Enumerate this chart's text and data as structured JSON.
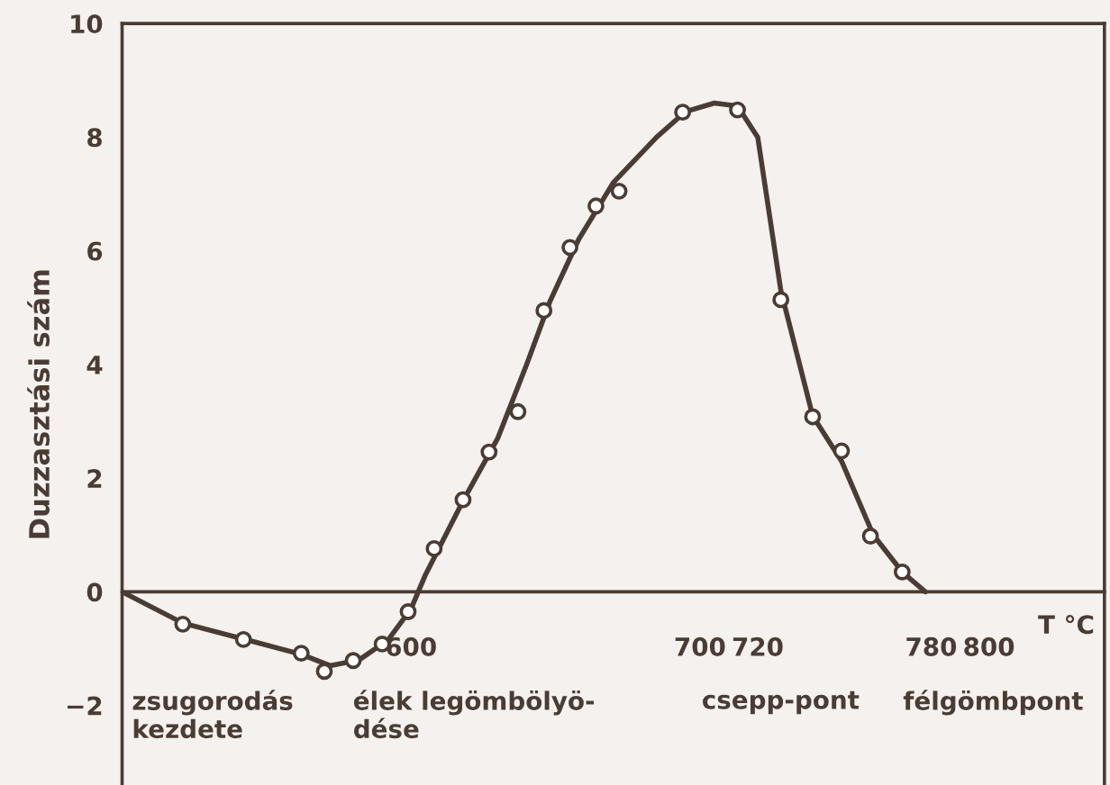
{
  "chart_data": {
    "type": "scatter",
    "ylabel": "Duzzasztási szám",
    "xlabel": "T °C",
    "xlim": [
      500,
      840
    ],
    "xticks": [
      600,
      700,
      720,
      780,
      800
    ],
    "ylim": [
      -3.4,
      10
    ],
    "yticks": [
      -2,
      0,
      2,
      4,
      6,
      8,
      10
    ],
    "grid": false,
    "series": [
      {
        "color": "#4a3c34",
        "marker": "circle",
        "x": [
          521,
          542,
          562,
          570,
          580,
          590,
          599,
          608,
          618,
          627,
          637,
          646,
          655,
          664,
          672,
          694,
          713,
          728,
          739,
          749,
          759,
          770
        ],
        "values": [
          -0.57,
          -0.84,
          -1.08,
          -1.4,
          -1.21,
          -0.92,
          -0.35,
          0.76,
          1.62,
          2.46,
          3.17,
          4.95,
          6.06,
          6.79,
          7.05,
          8.44,
          8.48,
          5.14,
          3.08,
          2.48,
          0.98,
          0.35
        ]
      },
      {
        "type": "line",
        "color": "#4a3c34",
        "marker": "none",
        "line_style": "solid",
        "x": [
          500,
          521,
          542,
          562,
          572,
          582,
          592,
          600,
          605,
          618,
          630,
          640,
          648,
          658,
          670,
          685,
          695,
          705,
          713,
          720,
          728,
          739,
          749,
          760,
          770,
          778
        ],
        "values": [
          0,
          -0.55,
          -0.83,
          -1.1,
          -1.3,
          -1.2,
          -0.85,
          -0.3,
          0.3,
          1.6,
          2.7,
          4.0,
          5.1,
          6.2,
          7.2,
          8.0,
          8.45,
          8.6,
          8.55,
          8.0,
          5.3,
          3.1,
          2.3,
          1.0,
          0.35,
          0
        ]
      }
    ],
    "annotations": [
      "zsugorodás\nkezdete",
      "élek legömbölyö-\ndése",
      "csepp-pont",
      "félgömbpont"
    ]
  }
}
